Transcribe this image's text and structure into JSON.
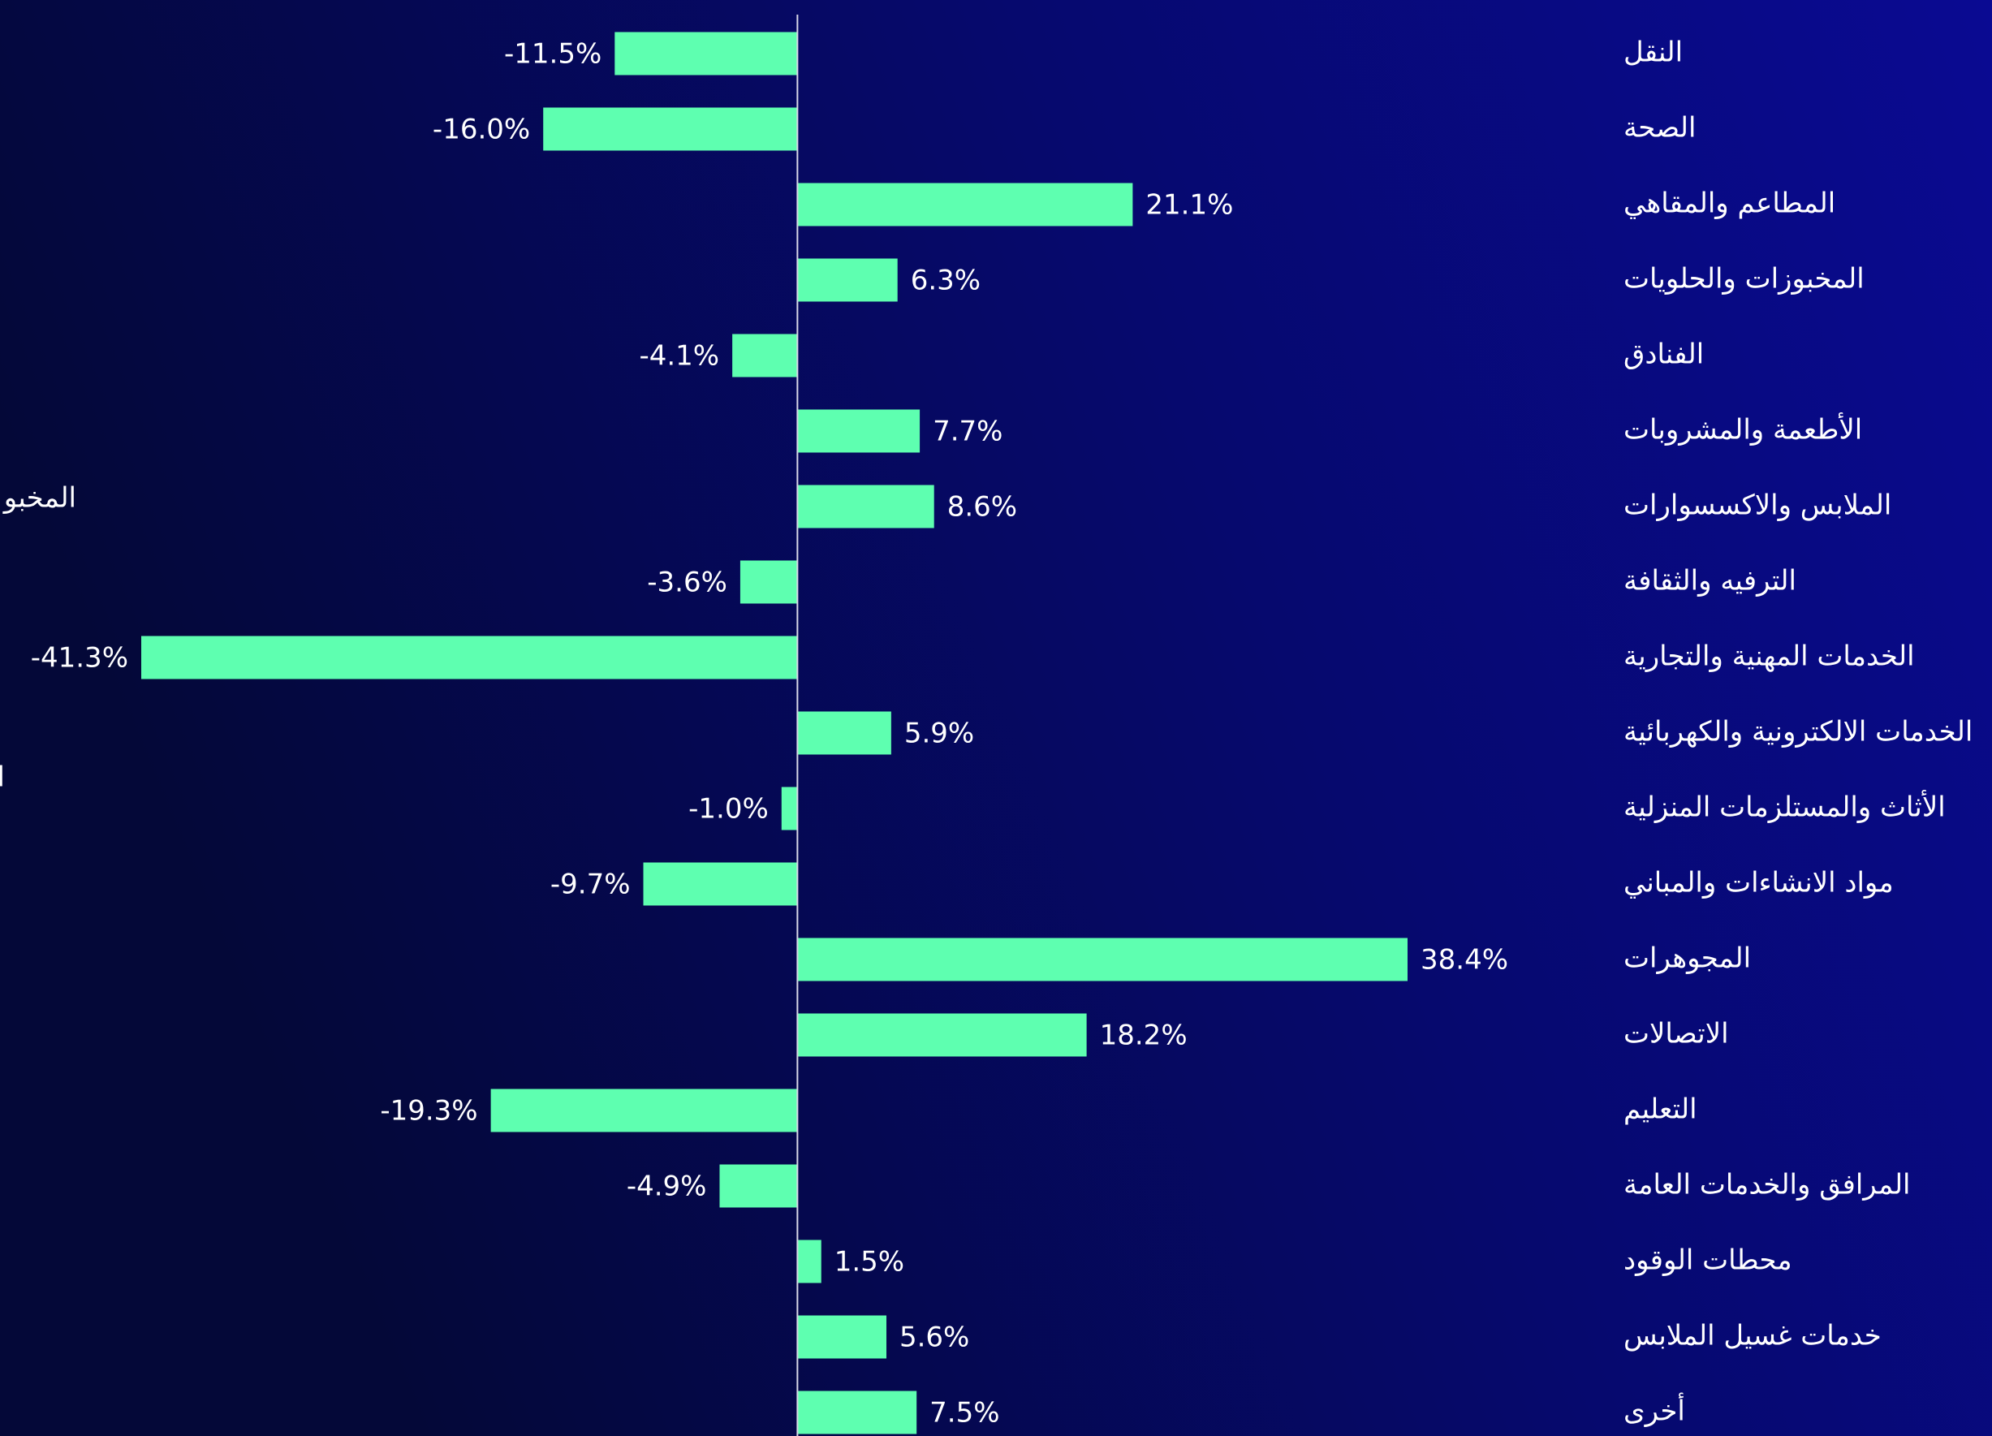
{
  "chart_data": {
    "type": "hbar",
    "categories": [
      "النقل",
      "الصحة",
      "المطاعم والمقاهي",
      "المخبوزات والحلويات",
      "الفنادق",
      "الأطعمة  والمشروبات",
      "الملابس والاكسسوارات",
      "الترفيه والثقافة",
      "الخدمات المهنية والتجارية",
      "الخدمات الالكترونية والكهربائية",
      "الأثاث والمستلزمات المنزلية",
      "مواد الانشاءات والمباني",
      "المجوهرات",
      "الاتصالات",
      "التعليم",
      "المرافق والخدمات العامة",
      "محطات الوقود",
      "خدمات غسيل الملابس",
      "أخرى"
    ],
    "values": [
      -11.5,
      -16.0,
      21.1,
      6.3,
      -4.1,
      7.7,
      8.6,
      -3.6,
      -41.3,
      5.9,
      -1.0,
      -9.7,
      38.4,
      18.2,
      -19.3,
      -4.9,
      1.5,
      5.6,
      7.5
    ],
    "value_labels": [
      "-11.5%",
      "-16.0%",
      "21.1%",
      "6.3%",
      "-4.1%",
      "7.7%",
      "8.6%",
      "-3.6%",
      "-41.3%",
      "5.9%",
      "-1.0%",
      "-9.7%",
      "38.4%",
      "18.2%",
      "-19.3%",
      "-4.9%",
      "1.5%",
      "5.6%",
      "7.5%"
    ],
    "color": "#5effb0",
    "annotations": [
      "المخبو",
      "ا"
    ]
  }
}
